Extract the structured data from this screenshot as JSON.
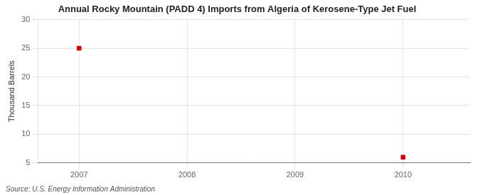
{
  "chart_data": {
    "type": "scatter",
    "title": "Annual Rocky Mountain (PADD 4) Imports from Algeria of Kerosene-Type Jet Fuel",
    "ylabel": "Thousand Barrels",
    "annotations": [
      "Source: U.S. Energy Information Administration"
    ],
    "x": [
      2007,
      2010
    ],
    "values": [
      25,
      6
    ],
    "color": "#cc0000",
    "marker": "square",
    "xlim": [
      2006.62,
      2010.62
    ],
    "xticks": [
      2007,
      2008,
      2009,
      2010
    ],
    "ylim": [
      5,
      30
    ],
    "yticks": [
      5,
      10,
      15,
      20,
      25,
      30
    ],
    "grid": true
  }
}
